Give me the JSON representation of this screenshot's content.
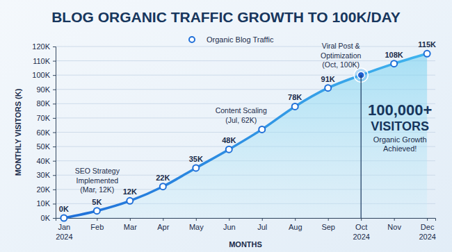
{
  "chart_data": {
    "type": "line",
    "title": "BLOG ORGANIC TRAFFIC GROWTH TO 100K/DAY",
    "xlabel": "MONTHS",
    "ylabel": "MONTHLY VISITORS (K)",
    "categories": [
      "Jan 2024",
      "Feb",
      "Mar",
      "Apr",
      "May",
      "Jun",
      "Jul",
      "Aug",
      "Sep",
      "Oct 2024",
      "Nov",
      "Dec 2024"
    ],
    "series": [
      {
        "name": "Organic Blog Traffic",
        "color": "#1f6fd8",
        "marker": "circle",
        "line_style": "solid",
        "values": [
          0,
          5,
          12,
          22,
          35,
          48,
          62,
          78,
          91,
          100,
          108,
          115
        ],
        "value_labels": [
          "0K",
          "5K",
          "12K",
          "22K",
          "35K",
          "48K",
          null,
          "78K",
          "91K",
          null,
          "108K",
          "115K"
        ]
      }
    ],
    "ylim": [
      0,
      120
    ],
    "yticks": [
      {
        "value": 0,
        "label": "0K"
      },
      {
        "value": 10,
        "label": "10K"
      },
      {
        "value": 20,
        "label": "20K"
      },
      {
        "value": 30,
        "label": "30K"
      },
      {
        "value": 40,
        "label": "40K"
      },
      {
        "value": 50,
        "label": "50K"
      },
      {
        "value": 60,
        "label": "60K"
      },
      {
        "value": 70,
        "label": "70K"
      },
      {
        "value": 80,
        "label": "80K"
      },
      {
        "value": 90,
        "label": "90K"
      },
      {
        "value": 100,
        "label": "100K"
      },
      {
        "value": 110,
        "label": "110K"
      },
      {
        "value": 120,
        "label": "120K"
      }
    ],
    "grid": true,
    "legend": "top",
    "data_labels": true,
    "annotations": [
      [
        "SEO Strategy",
        "Implemented",
        "(Mar, 12K)"
      ],
      [
        "Content Scaling",
        "(Jul, 62K)"
      ],
      [
        "Viral Post &",
        "Optimization",
        "(Oct, 100K)"
      ]
    ],
    "callout": [
      "100,000+",
      "VISITORS",
      "Organic Growth",
      "Achieved!"
    ]
  }
}
